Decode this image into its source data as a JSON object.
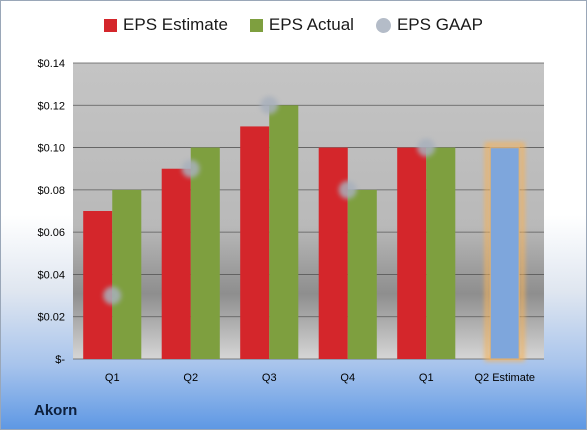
{
  "legend": {
    "estimate": "EPS Estimate",
    "actual": "EPS Actual",
    "gaap": "EPS GAAP"
  },
  "company": "Akorn",
  "colors": {
    "estimate": "#d4262b",
    "actual": "#7e9f3f",
    "projection": "#7ea6dc",
    "projection_glow": "#f5b25a",
    "gaap": "#a8b0bc"
  },
  "chart_data": {
    "type": "bar",
    "categories": [
      "Q1",
      "Q2",
      "Q3",
      "Q4",
      "Q1",
      "Q2 Estimate"
    ],
    "series": [
      {
        "name": "EPS Estimate",
        "values": [
          0.07,
          0.09,
          0.11,
          0.1,
          0.1,
          null
        ]
      },
      {
        "name": "EPS Actual",
        "values": [
          0.08,
          0.1,
          0.12,
          0.08,
          0.1,
          0.1
        ]
      },
      {
        "name": "EPS GAAP",
        "values": [
          0.03,
          0.09,
          0.12,
          0.08,
          0.1,
          null
        ]
      }
    ],
    "ytick_labels": [
      "$-",
      "$0.02",
      "$0.04",
      "$0.06",
      "$0.08",
      "$0.10",
      "$0.12",
      "$0.14"
    ],
    "ylim": [
      0,
      0.14
    ],
    "grid": true,
    "legend_position": "top"
  }
}
